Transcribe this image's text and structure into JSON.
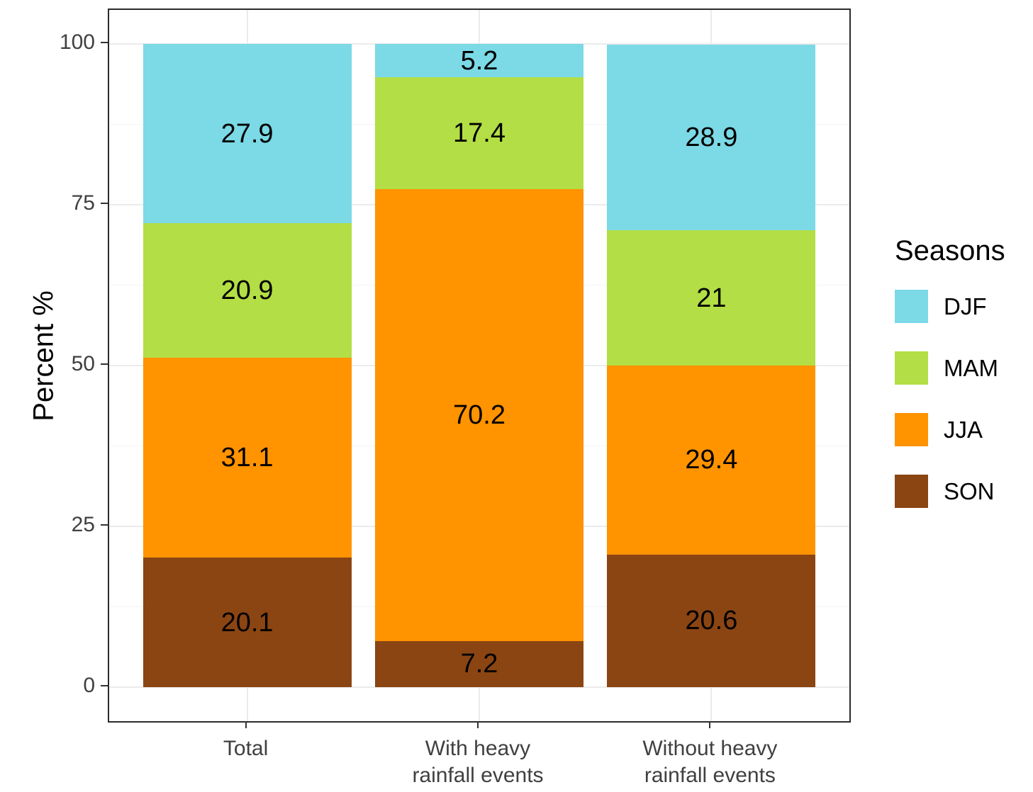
{
  "figure": {
    "background": "#ffffff"
  },
  "chart_data": {
    "type": "bar",
    "stacked": true,
    "orientation": "vertical",
    "ylabel": "Percent %",
    "xlabel": "",
    "ylim": [
      0,
      100
    ],
    "yticks": [
      "0",
      "25",
      "50",
      "75",
      "100"
    ],
    "categories": [
      "Total",
      "With heavy\nrainfall events",
      "Without heavy\nrainfall events"
    ],
    "series": [
      {
        "name": "SON",
        "color": "#8B4513",
        "values": [
          20.1,
          7.2,
          20.6
        ],
        "labels": [
          "20.1",
          "7.2",
          "20.6"
        ]
      },
      {
        "name": "JJA",
        "color": "#FF9300",
        "values": [
          31.1,
          70.2,
          29.4
        ],
        "labels": [
          "31.1",
          "70.2",
          "29.4"
        ]
      },
      {
        "name": "MAM",
        "color": "#B3DE45",
        "values": [
          20.9,
          17.4,
          21
        ],
        "labels": [
          "20.9",
          "17.4",
          "21"
        ]
      },
      {
        "name": "DJF",
        "color": "#7CD9E6",
        "values": [
          27.9,
          5.2,
          28.9
        ],
        "labels": [
          "27.9",
          "5.2",
          "28.9"
        ]
      }
    ],
    "legend": {
      "title": "Seasons",
      "position": "right",
      "entries": [
        "DJF",
        "MAM",
        "JJA",
        "SON"
      ]
    },
    "grid": {
      "major_y": [
        0,
        25,
        50,
        75,
        100
      ],
      "minor_y": [
        12.5,
        37.5,
        62.5,
        87.5
      ]
    }
  }
}
